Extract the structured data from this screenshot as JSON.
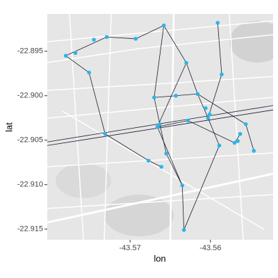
{
  "chart_data": {
    "type": "map",
    "x_label": "lon",
    "y_label": "lat",
    "xlim": [
      -43.5803,
      -43.5522
    ],
    "ylim": [
      -22.9162,
      -22.8908
    ],
    "xticks": [
      -43.57,
      -43.56
    ],
    "yticks": [
      -22.895,
      {
        "value": -22.9,
        "label": "-22.900"
      },
      -22.905,
      {
        "value": -22.91,
        "label": "-22.910"
      },
      -22.915
    ],
    "points": {
      "color": "#29b6e8",
      "x": [
        -43.578,
        -43.5768,
        -43.5745,
        -43.5729,
        -43.5693,
        -43.5658,
        -43.563,
        -43.5591,
        -43.5586,
        -43.5643,
        -43.567,
        -43.5616,
        -43.5606,
        -43.5601,
        -43.5603,
        -43.5663,
        -43.5666,
        -43.5628,
        -43.5563,
        -43.5566,
        -43.557,
        -43.5546,
        -43.5589,
        -43.5655,
        -43.5677,
        -43.5635,
        -43.5633,
        -43.5661,
        -43.5731,
        -43.5751,
        -43.5556
      ],
      "y": [
        -22.8955,
        -22.8952,
        -22.8937,
        -22.8934,
        -22.8936,
        -22.8921,
        -22.8963,
        -22.8918,
        -22.8976,
        -22.9,
        -22.9002,
        -22.8998,
        -22.9014,
        -22.9021,
        -22.9025,
        -22.9032,
        -22.9035,
        -22.9028,
        -22.9043,
        -22.9051,
        -22.9053,
        -22.9062,
        -22.9056,
        -22.9065,
        -22.9073,
        -22.9101,
        -22.9151,
        -22.908,
        -22.9043,
        -22.8974,
        -22.9032
      ]
    },
    "link_color": "#1a1a2e",
    "links": [
      {
        "x": [
          -43.5803,
          -43.5522
        ],
        "y": [
          -22.9052,
          -22.9011
        ]
      },
      {
        "x": [
          -43.5803,
          -43.5522
        ],
        "y": [
          -22.9056,
          -22.9016
        ]
      },
      {
        "x": [
          -43.578,
          -43.5729,
          -43.5693,
          -43.5658,
          -43.563,
          -43.5616,
          -43.5603
        ],
        "y": [
          -22.8955,
          -22.8934,
          -22.8936,
          -22.8921,
          -22.8963,
          -22.8998,
          -22.9025
        ]
      },
      {
        "x": [
          -43.5658,
          -43.567,
          -43.5663,
          -43.5655,
          -43.5635,
          -43.5633
        ],
        "y": [
          -22.8921,
          -22.9002,
          -22.9032,
          -22.9065,
          -22.9101,
          -22.9151
        ]
      },
      {
        "x": [
          -43.5591,
          -43.5586,
          -43.5603,
          -43.5589,
          -43.5633
        ],
        "y": [
          -22.8918,
          -22.8976,
          -22.9025,
          -22.9056,
          -22.9151
        ]
      },
      {
        "x": [
          -43.578,
          -43.5751,
          -43.5731,
          -43.5677,
          -43.5661
        ],
        "y": [
          -22.8955,
          -22.8974,
          -22.9043,
          -22.9073,
          -22.908
        ]
      },
      {
        "x": [
          -43.567,
          -43.5643,
          -43.5616,
          -43.5556,
          -43.5546
        ],
        "y": [
          -22.9002,
          -22.9,
          -22.8998,
          -22.9032,
          -22.9062
        ]
      },
      {
        "x": [
          -43.5666,
          -43.5628,
          -43.557,
          -43.5563
        ],
        "y": [
          -22.9035,
          -22.9028,
          -22.9053,
          -22.9043
        ]
      },
      {
        "x": [
          -43.563,
          -43.5666,
          -43.5635
        ],
        "y": [
          -22.8963,
          -22.9035,
          -22.9101
        ]
      }
    ]
  }
}
